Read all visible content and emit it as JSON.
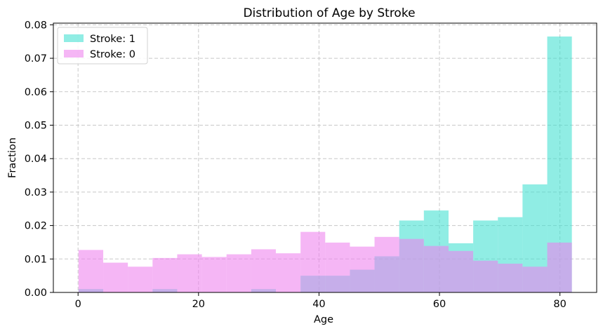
{
  "chart_data": {
    "type": "bar",
    "title": "Distribution of Age by Stroke",
    "xlabel": "Age",
    "ylabel": "Fraction",
    "xlim": [
      -4.1,
      86.1
    ],
    "ylim": [
      0,
      0.0805
    ],
    "xticks": [
      0,
      20,
      40,
      60,
      80
    ],
    "yticks": [
      0.0,
      0.01,
      0.02,
      0.03,
      0.04,
      0.05,
      0.06,
      0.07,
      0.08
    ],
    "ytick_labels": [
      "0.00",
      "0.01",
      "0.02",
      "0.03",
      "0.04",
      "0.05",
      "0.06",
      "0.07",
      "0.08"
    ],
    "grid": true,
    "legend_position": "top-left",
    "bin_edges": [
      0.08,
      4.18,
      8.27,
      12.37,
      16.46,
      20.56,
      24.65,
      28.75,
      32.84,
      36.94,
      41.03,
      45.13,
      49.22,
      53.32,
      57.41,
      61.51,
      65.6,
      69.7,
      73.79,
      77.89,
      81.98
    ],
    "series": [
      {
        "name": "Stroke: 1",
        "color": "#40e0d0",
        "opacity": 0.58,
        "values": [
          0.001,
          0.0,
          0.0,
          0.001,
          0.0,
          0.0,
          0.0,
          0.001,
          0.0,
          0.005,
          0.005,
          0.0068,
          0.0108,
          0.0215,
          0.0245,
          0.0147,
          0.0215,
          0.0225,
          0.0323,
          0.0765
        ]
      },
      {
        "name": "Stroke: 0",
        "color": "#ee82ee",
        "opacity": 0.58,
        "values": [
          0.0127,
          0.0089,
          0.0077,
          0.0103,
          0.0114,
          0.0106,
          0.0114,
          0.0129,
          0.0117,
          0.0181,
          0.0149,
          0.0137,
          0.0166,
          0.016,
          0.0139,
          0.0124,
          0.0095,
          0.0086,
          0.0077,
          0.0149
        ]
      }
    ]
  }
}
